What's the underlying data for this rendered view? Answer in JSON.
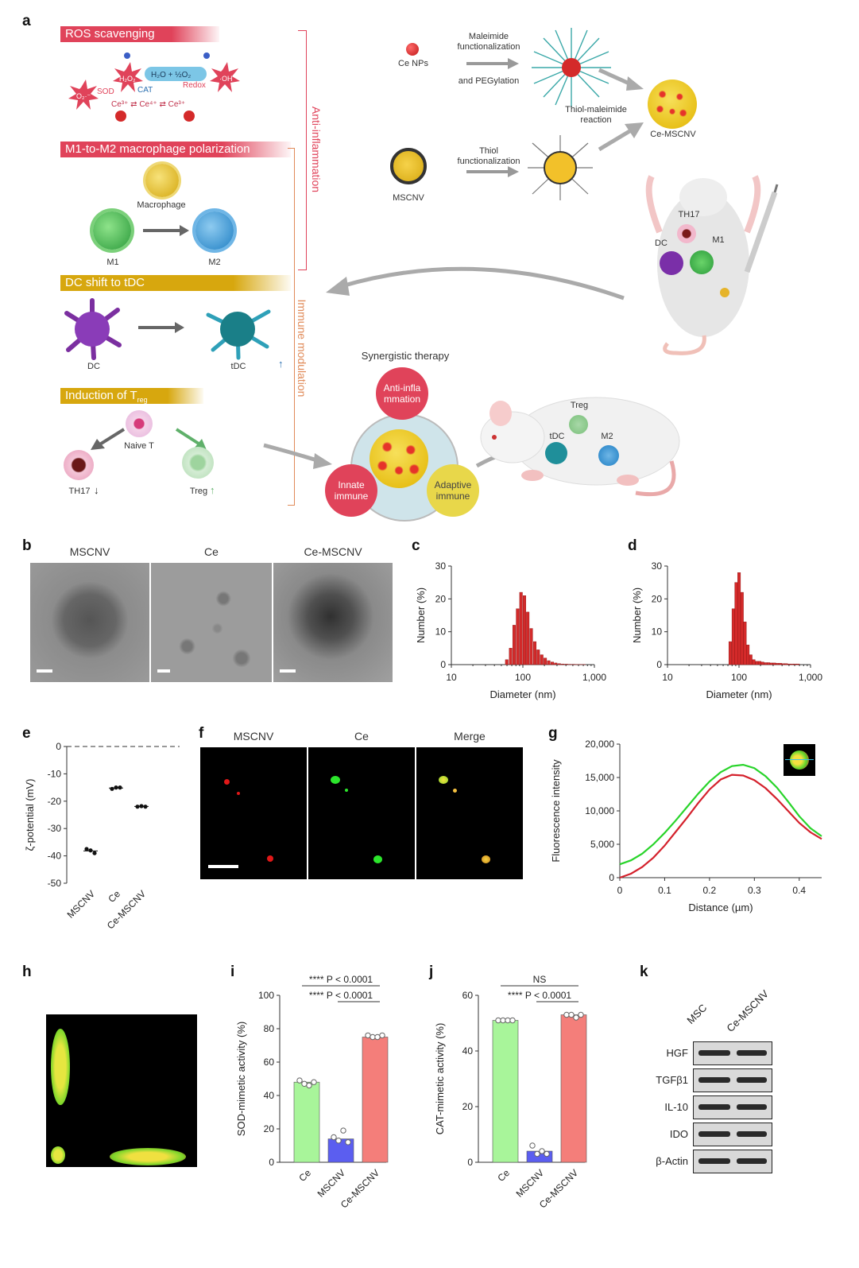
{
  "panel_letters": {
    "a": "a",
    "b": "b",
    "c": "c",
    "d": "d",
    "e": "e",
    "f": "f",
    "g": "g",
    "h": "h",
    "i": "i",
    "j": "j",
    "k": "k"
  },
  "panel_a": {
    "ros_banner": "ROS scavenging",
    "m1m2_banner": "M1-to-M2 macrophage polarization",
    "dc_banner": "DC shift to tDC",
    "treg_banner": "Induction of T",
    "treg_banner_sub": "reg",
    "anti_inflammation": "Anti-inflammation",
    "immune_modulation": "Immune modulation",
    "ros_h2o2": "H₂O₂",
    "ros_water": "H₂O + ½O₂",
    "ros_oh": "·OH",
    "ros_o2": "O₂·⁻",
    "ros_sod": "SOD",
    "ros_cat": "CAT",
    "ros_redox": "Redox",
    "ros_ce_chain": "Ce³⁺ ⇄ Ce⁴⁺ ⇄ Ce³⁺",
    "macrophage": "Macrophage",
    "m1": "M1",
    "m2": "M2",
    "dc": "DC",
    "tdc": "tDC",
    "naive_t": "Naive T",
    "th17": "TH17",
    "treg": "Treg",
    "ce_nps": "Ce NPs",
    "maleimide": "Maleimide functionalization",
    "pegylation": "and PEGylation",
    "mscnv": "MSCNV",
    "thiol": "Thiol functionalization",
    "thiol_maleimide": "Thiol-maleimide reaction",
    "ce_mscnv": "Ce-MSCNV",
    "mouse_th17": "TH17",
    "mouse_dc": "DC",
    "mouse_m1": "M1",
    "synergistic": "Synergistic therapy",
    "circle_anti": "Anti-infla mmation",
    "circle_innate": "Innate immune",
    "circle_adaptive": "Adaptive immune",
    "rat_treg": "Treg",
    "rat_tdc": "tDC",
    "rat_m2": "M2",
    "colors": {
      "red": "#e0435a",
      "gold": "#d7a70e",
      "orange_line": "#e08a58"
    }
  },
  "panel_b": {
    "labels": [
      "MSCNV",
      "Ce",
      "Ce-MSCNV"
    ]
  },
  "panel_f": {
    "labels": [
      "MSCNV",
      "Ce",
      "Merge"
    ]
  },
  "panel_k": {
    "columns": [
      "MSC",
      "Ce-MSCNV"
    ],
    "rows": [
      "HGF",
      "TGFβ1",
      "IL-10",
      "IDO",
      "β-Actin"
    ]
  },
  "chart_data": [
    {
      "id": "c",
      "type": "bar",
      "xlabel": "Diameter (nm)",
      "ylabel": "Number (%)",
      "xscale": "log",
      "xlim": [
        10,
        1000
      ],
      "ylim": [
        0,
        30
      ],
      "xticks": [
        "10",
        "100",
        "1,000"
      ],
      "yticks": [
        "0",
        "10",
        "20",
        "30"
      ],
      "x": [
        60,
        68,
        76,
        85,
        95,
        106,
        118,
        132,
        148,
        165,
        185,
        207,
        232,
        260,
        290,
        325,
        365,
        410,
        460,
        515,
        575,
        645,
        720
      ],
      "values": [
        1.5,
        5,
        12,
        17,
        22,
        21,
        16,
        11,
        7,
        4.5,
        3,
        2,
        1.2,
        0.8,
        0.5,
        0.3,
        0.2,
        0.15,
        0.1,
        0.1,
        0.05,
        0.05,
        0.05
      ]
    },
    {
      "id": "d",
      "type": "bar",
      "xlabel": "Diameter (nm)",
      "ylabel": "Number (%)",
      "xscale": "log",
      "xlim": [
        10,
        1000
      ],
      "ylim": [
        0,
        30
      ],
      "xticks": [
        "10",
        "100",
        "1,000"
      ],
      "yticks": [
        "0",
        "10",
        "20",
        "30"
      ],
      "x": [
        76,
        84,
        92,
        101,
        111,
        122,
        134,
        147,
        162,
        178,
        196,
        215,
        237,
        260,
        286,
        315,
        346,
        380,
        418,
        460,
        506,
        556,
        612,
        673
      ],
      "values": [
        7,
        17,
        25,
        28,
        22,
        13,
        6,
        3,
        1.5,
        1,
        1,
        0.8,
        0.6,
        0.6,
        0.5,
        0.5,
        0.4,
        0.4,
        0.3,
        0.3,
        0.2,
        0.2,
        0.2,
        0.2
      ]
    },
    {
      "id": "e",
      "type": "scatter",
      "ylabel": "ζ-potential (mV)",
      "categories": [
        "MSCNV",
        "Ce",
        "Ce-MSCNV"
      ],
      "ylim": [
        -50,
        0
      ],
      "yticks": [
        "0",
        "-10",
        "-20",
        "-30",
        "-40",
        "-50"
      ],
      "points": [
        [
          -37.5,
          -38,
          -39
        ],
        [
          -15.5,
          -15,
          -15
        ],
        [
          -22,
          -21.8,
          -22
        ]
      ],
      "means": [
        -38.2,
        -15.2,
        -21.9
      ]
    },
    {
      "id": "g",
      "type": "line",
      "xlabel": "Distance (µm)",
      "ylabel": "Fluorescence intensity",
      "xlim": [
        0,
        0.45
      ],
      "ylim": [
        0,
        20000
      ],
      "xticks": [
        "0",
        "0.1",
        "0.2",
        "0.3",
        "0.4"
      ],
      "yticks": [
        "0",
        "5,000",
        "10,000",
        "15,000",
        "20,000"
      ],
      "x": [
        0,
        0.025,
        0.05,
        0.075,
        0.1,
        0.125,
        0.15,
        0.175,
        0.2,
        0.225,
        0.25,
        0.275,
        0.3,
        0.325,
        0.35,
        0.375,
        0.4,
        0.425,
        0.45
      ],
      "series": [
        {
          "color": "#28d42a",
          "values": [
            2000,
            2600,
            3600,
            5000,
            6700,
            8600,
            10600,
            12600,
            14400,
            15800,
            16700,
            16900,
            16400,
            15200,
            13500,
            11400,
            9200,
            7400,
            6200
          ]
        },
        {
          "color": "#d4212c",
          "values": [
            0,
            600,
            1600,
            3000,
            4800,
            6900,
            9000,
            11200,
            13200,
            14700,
            15400,
            15300,
            14600,
            13400,
            11800,
            10000,
            8200,
            6800,
            5800
          ]
        }
      ]
    },
    {
      "id": "i",
      "type": "bar",
      "ylabel": "SOD-mimetic activity (%)",
      "categories": [
        "Ce",
        "MSCNV",
        "Ce-MSCNV"
      ],
      "ylim": [
        0,
        100
      ],
      "yticks": [
        "0",
        "20",
        "40",
        "60",
        "80",
        "100"
      ],
      "values": [
        48,
        14,
        75
      ],
      "points": [
        [
          49,
          47,
          46,
          48
        ],
        [
          15,
          13,
          19,
          12
        ],
        [
          76,
          75,
          75,
          76
        ]
      ],
      "colors": [
        "#a8f59a",
        "#5b5ef0",
        "#f47e7a"
      ],
      "annotations": [
        "**** P < 0.0001",
        "**** P < 0.0001"
      ]
    },
    {
      "id": "j",
      "type": "bar",
      "ylabel": "CAT-mimetic activity (%)",
      "categories": [
        "Ce",
        "MSCNV",
        "Ce-MSCNV"
      ],
      "ylim": [
        0,
        60
      ],
      "yticks": [
        "0",
        "20",
        "40",
        "60"
      ],
      "values": [
        51,
        4,
        53
      ],
      "points": [
        [
          51,
          51,
          51,
          51
        ],
        [
          6,
          3,
          4,
          3
        ],
        [
          53,
          53,
          52,
          53
        ]
      ],
      "colors": [
        "#a8f59a",
        "#5b5ef0",
        "#f47e7a"
      ],
      "annotations": [
        "NS",
        "**** P < 0.0001"
      ]
    }
  ]
}
